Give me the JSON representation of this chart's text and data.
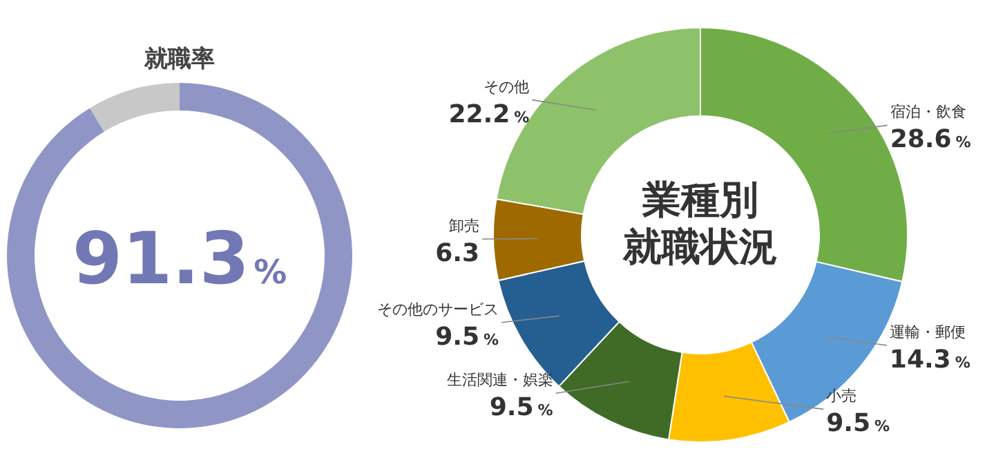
{
  "chart_data": [
    {
      "type": "donut",
      "title": "就職率",
      "categories": [
        null,
        null
      ],
      "values": [
        91.3,
        8.7
      ],
      "colors": [
        "#8f96c6",
        "#c8c8c8"
      ],
      "value_labels": [
        "91.3%",
        null
      ]
    },
    {
      "type": "donut",
      "title": "業種別就職状況",
      "categories": [
        "宿泊・飲食",
        "運輸・郵便",
        "小売",
        "生活関連・娯楽",
        "その他のサービス",
        "卸売",
        "その他"
      ],
      "values": [
        28.6,
        14.3,
        9.5,
        9.5,
        9.5,
        6.3,
        22.2
      ],
      "colors": [
        "#70ad47",
        "#5b9bd5",
        "#ffc000",
        "#3f6b27",
        "#255e91",
        "#9e6a00",
        "#8dc26a"
      ],
      "value_labels": [
        "28.6%",
        "14.3%",
        "9.5%",
        "9.5%",
        "9.5%",
        "6.3",
        "22.2%"
      ]
    }
  ]
}
